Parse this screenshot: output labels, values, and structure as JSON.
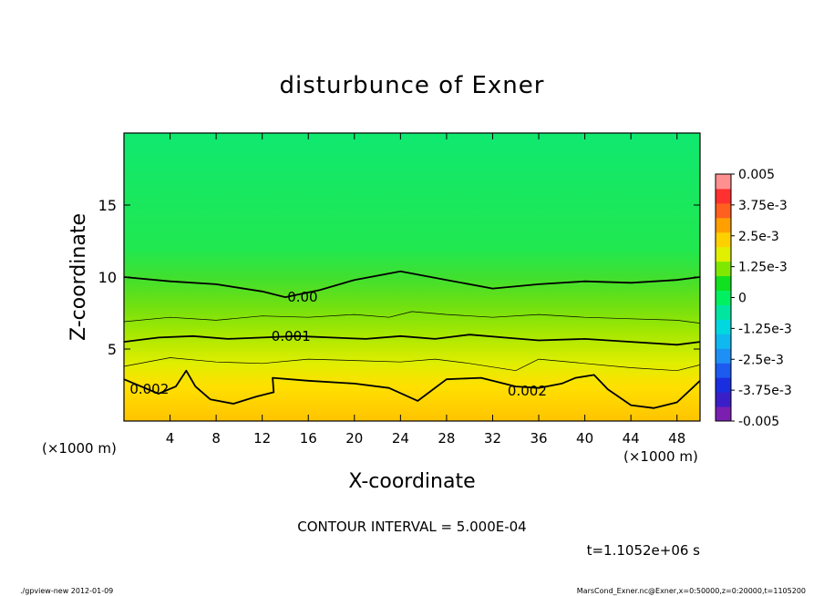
{
  "chart_data": {
    "type": "contour",
    "title": "disturbunce of Exner",
    "xlabel": "X-coordinate",
    "ylabel": "Z-coordinate",
    "x_unit_left": "(×1000 m)",
    "x_unit_right": "(×1000 m)",
    "xlim": [
      0,
      50
    ],
    "ylim": [
      0,
      20
    ],
    "x_ticks": [
      4,
      8,
      12,
      16,
      20,
      24,
      28,
      32,
      36,
      40,
      44,
      48
    ],
    "y_ticks": [
      5,
      10,
      15
    ],
    "colorbar": {
      "levels": [
        -0.005,
        -0.004375,
        -0.00375,
        -0.003125,
        -0.0025,
        -0.001875,
        -0.00125,
        -0.000625,
        0,
        0.000625,
        0.00125,
        0.001875,
        0.0025,
        0.003125,
        0.00375,
        0.004375,
        0.005
      ],
      "colors": [
        "#7a1fb0",
        "#3a1fc8",
        "#1a2ee0",
        "#1c5af0",
        "#1e90f5",
        "#10b8f0",
        "#00d8e0",
        "#00e5a0",
        "#00f060",
        "#10e020",
        "#80e800",
        "#e0f000",
        "#ffd000",
        "#ffa000",
        "#ff6020",
        "#ff3030",
        "#ff9090"
      ],
      "tick_labels": [
        "0.005",
        "3.75e-3",
        "2.5e-3",
        "1.25e-3",
        "0",
        "-1.25e-3",
        "-2.5e-3",
        "-3.75e-3",
        "-0.005"
      ]
    },
    "contour_labels": [
      {
        "text": "0.00",
        "x": 15.5,
        "y": 8.6
      },
      {
        "text": "0.001",
        "x": 14.5,
        "y": 5.9
      },
      {
        "text": "0.002",
        "x": 2.2,
        "y": 2.2
      },
      {
        "text": "0.002",
        "x": 35,
        "y": 2.1
      }
    ],
    "contours": [
      {
        "level": 0.0,
        "points": [
          [
            0,
            10.0
          ],
          [
            4,
            9.7
          ],
          [
            8,
            9.5
          ],
          [
            12,
            9.0
          ],
          [
            14,
            8.6
          ],
          [
            17,
            9.1
          ],
          [
            20,
            9.8
          ],
          [
            24,
            10.4
          ],
          [
            28,
            9.8
          ],
          [
            32,
            9.2
          ],
          [
            36,
            9.5
          ],
          [
            40,
            9.7
          ],
          [
            44,
            9.6
          ],
          [
            48,
            9.8
          ],
          [
            50,
            10.0
          ]
        ]
      },
      {
        "level": 0.0005,
        "points": [
          [
            0,
            6.9
          ],
          [
            4,
            7.2
          ],
          [
            8,
            7.0
          ],
          [
            12,
            7.3
          ],
          [
            16,
            7.2
          ],
          [
            20,
            7.4
          ],
          [
            23,
            7.2
          ],
          [
            25,
            7.6
          ],
          [
            28,
            7.4
          ],
          [
            32,
            7.2
          ],
          [
            36,
            7.4
          ],
          [
            40,
            7.2
          ],
          [
            44,
            7.1
          ],
          [
            48,
            7.0
          ],
          [
            50,
            6.8
          ]
        ]
      },
      {
        "level": 0.001,
        "points": [
          [
            0,
            5.5
          ],
          [
            3,
            5.8
          ],
          [
            6,
            5.9
          ],
          [
            9,
            5.7
          ],
          [
            12,
            5.8
          ],
          [
            15,
            5.9
          ],
          [
            18,
            5.8
          ],
          [
            21,
            5.7
          ],
          [
            24,
            5.9
          ],
          [
            27,
            5.7
          ],
          [
            30,
            6.0
          ],
          [
            33,
            5.8
          ],
          [
            36,
            5.6
          ],
          [
            40,
            5.7
          ],
          [
            44,
            5.5
          ],
          [
            48,
            5.3
          ],
          [
            50,
            5.5
          ]
        ]
      },
      {
        "level": 0.0015,
        "points": [
          [
            0,
            3.8
          ],
          [
            4,
            4.4
          ],
          [
            8,
            4.1
          ],
          [
            12,
            4.0
          ],
          [
            16,
            4.3
          ],
          [
            20,
            4.2
          ],
          [
            24,
            4.1
          ],
          [
            27,
            4.3
          ],
          [
            30,
            4.0
          ],
          [
            34,
            3.5
          ],
          [
            36,
            4.3
          ],
          [
            40,
            4.0
          ],
          [
            44,
            3.7
          ],
          [
            48,
            3.5
          ],
          [
            50,
            3.9
          ]
        ]
      },
      {
        "level": 0.002,
        "points": [
          [
            0,
            2.9
          ],
          [
            3,
            1.9
          ],
          [
            4.5,
            2.4
          ],
          [
            5.4,
            3.5
          ],
          [
            6.2,
            2.4
          ],
          [
            7.5,
            1.5
          ],
          [
            9.5,
            1.2
          ],
          [
            11.5,
            1.7
          ],
          [
            13,
            2.0
          ],
          [
            12.9,
            3.0
          ],
          [
            16,
            2.8
          ],
          [
            20,
            2.6
          ],
          [
            23,
            2.3
          ],
          [
            25.5,
            1.4
          ],
          [
            28,
            2.9
          ],
          [
            31,
            3.0
          ],
          [
            34,
            2.4
          ],
          [
            36,
            2.3
          ],
          [
            38,
            2.6
          ],
          [
            39.2,
            3.0
          ],
          [
            40.8,
            3.2
          ],
          [
            42,
            2.2
          ],
          [
            44,
            1.1
          ],
          [
            46,
            0.9
          ],
          [
            48,
            1.3
          ],
          [
            50,
            2.8
          ]
        ]
      }
    ],
    "contour_interval_text": "CONTOUR INTERVAL = 5.000E-04",
    "time_text": "t=1.1052e+06 s"
  },
  "footer": {
    "left": "./gpview-new   2012-01-09",
    "right": "MarsCond_Exner.nc@Exner,x=0:50000,z=0:20000,t=1105200"
  }
}
